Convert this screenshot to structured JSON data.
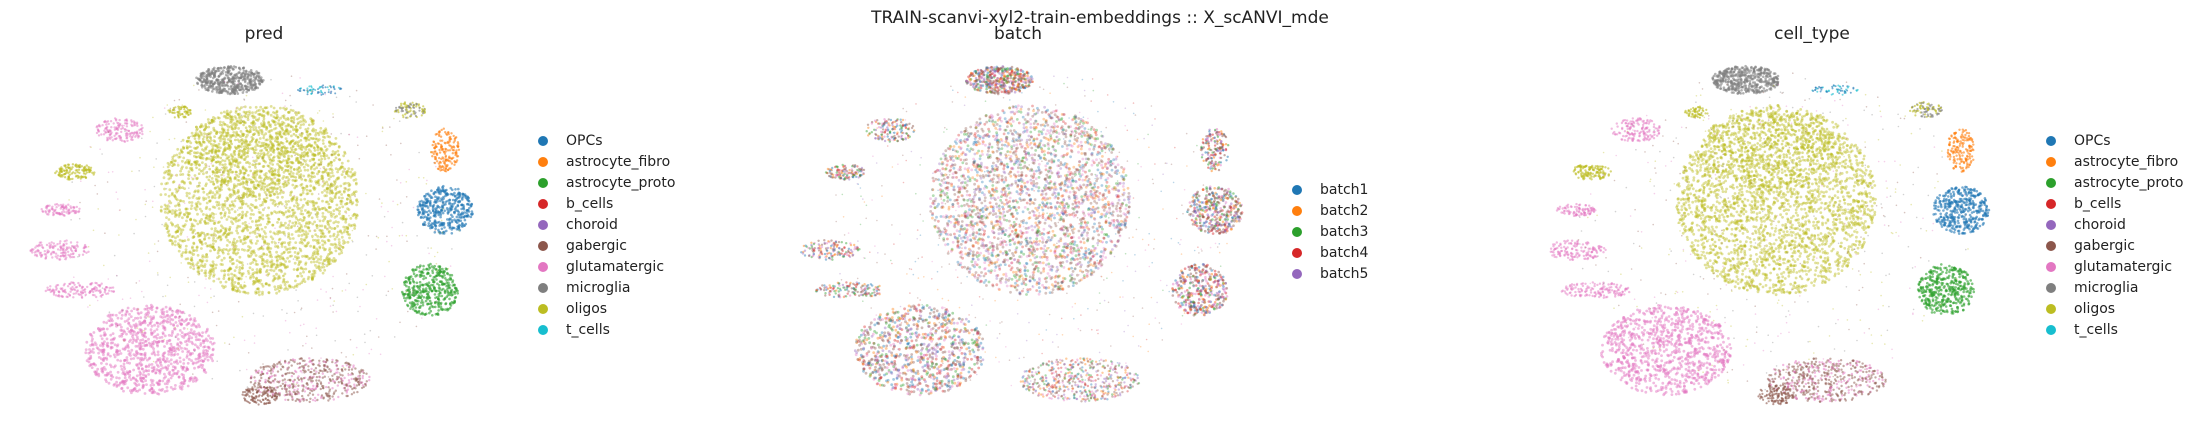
{
  "suptitle": "TRAIN-scanvi-xyl2-train-embeddings :: X_scANVI_mde",
  "chart_data": [
    {
      "type": "scatter",
      "title": "pred",
      "xlabel": "",
      "ylabel": "",
      "axes_visible": false,
      "legend_placement": "right",
      "legend": [
        {
          "label": "OPCs",
          "color": "#1f77b4"
        },
        {
          "label": "astrocyte_fibro",
          "color": "#ff7f0e"
        },
        {
          "label": "astrocyte_proto",
          "color": "#2ca02c"
        },
        {
          "label": "b_cells",
          "color": "#d62728"
        },
        {
          "label": "choroid",
          "color": "#9467bd"
        },
        {
          "label": "gabergic",
          "color": "#8c564b"
        },
        {
          "label": "glutamatergic",
          "color": "#e377c2"
        },
        {
          "label": "microglia",
          "color": "#7f7f7f"
        },
        {
          "label": "oligos",
          "color": "#bcbd22"
        },
        {
          "label": "t_cells",
          "color": "#17becf"
        }
      ]
    },
    {
      "type": "scatter",
      "title": "batch",
      "xlabel": "",
      "ylabel": "",
      "axes_visible": false,
      "legend_placement": "right",
      "legend": [
        {
          "label": "batch1",
          "color": "#1f77b4"
        },
        {
          "label": "batch2",
          "color": "#ff7f0e"
        },
        {
          "label": "batch3",
          "color": "#2ca02c"
        },
        {
          "label": "batch4",
          "color": "#d62728"
        },
        {
          "label": "batch5",
          "color": "#9467bd"
        }
      ]
    },
    {
      "type": "scatter",
      "title": "cell_type",
      "xlabel": "",
      "ylabel": "",
      "axes_visible": false,
      "legend_placement": "right",
      "legend": [
        {
          "label": "OPCs",
          "color": "#1f77b4"
        },
        {
          "label": "astrocyte_fibro",
          "color": "#ff7f0e"
        },
        {
          "label": "astrocyte_proto",
          "color": "#2ca02c"
        },
        {
          "label": "b_cells",
          "color": "#d62728"
        },
        {
          "label": "choroid",
          "color": "#9467bd"
        },
        {
          "label": "gabergic",
          "color": "#8c564b"
        },
        {
          "label": "glutamatergic",
          "color": "#e377c2"
        },
        {
          "label": "microglia",
          "color": "#7f7f7f"
        },
        {
          "label": "oligos",
          "color": "#bcbd22"
        },
        {
          "label": "t_cells",
          "color": "#17becf"
        }
      ]
    }
  ]
}
